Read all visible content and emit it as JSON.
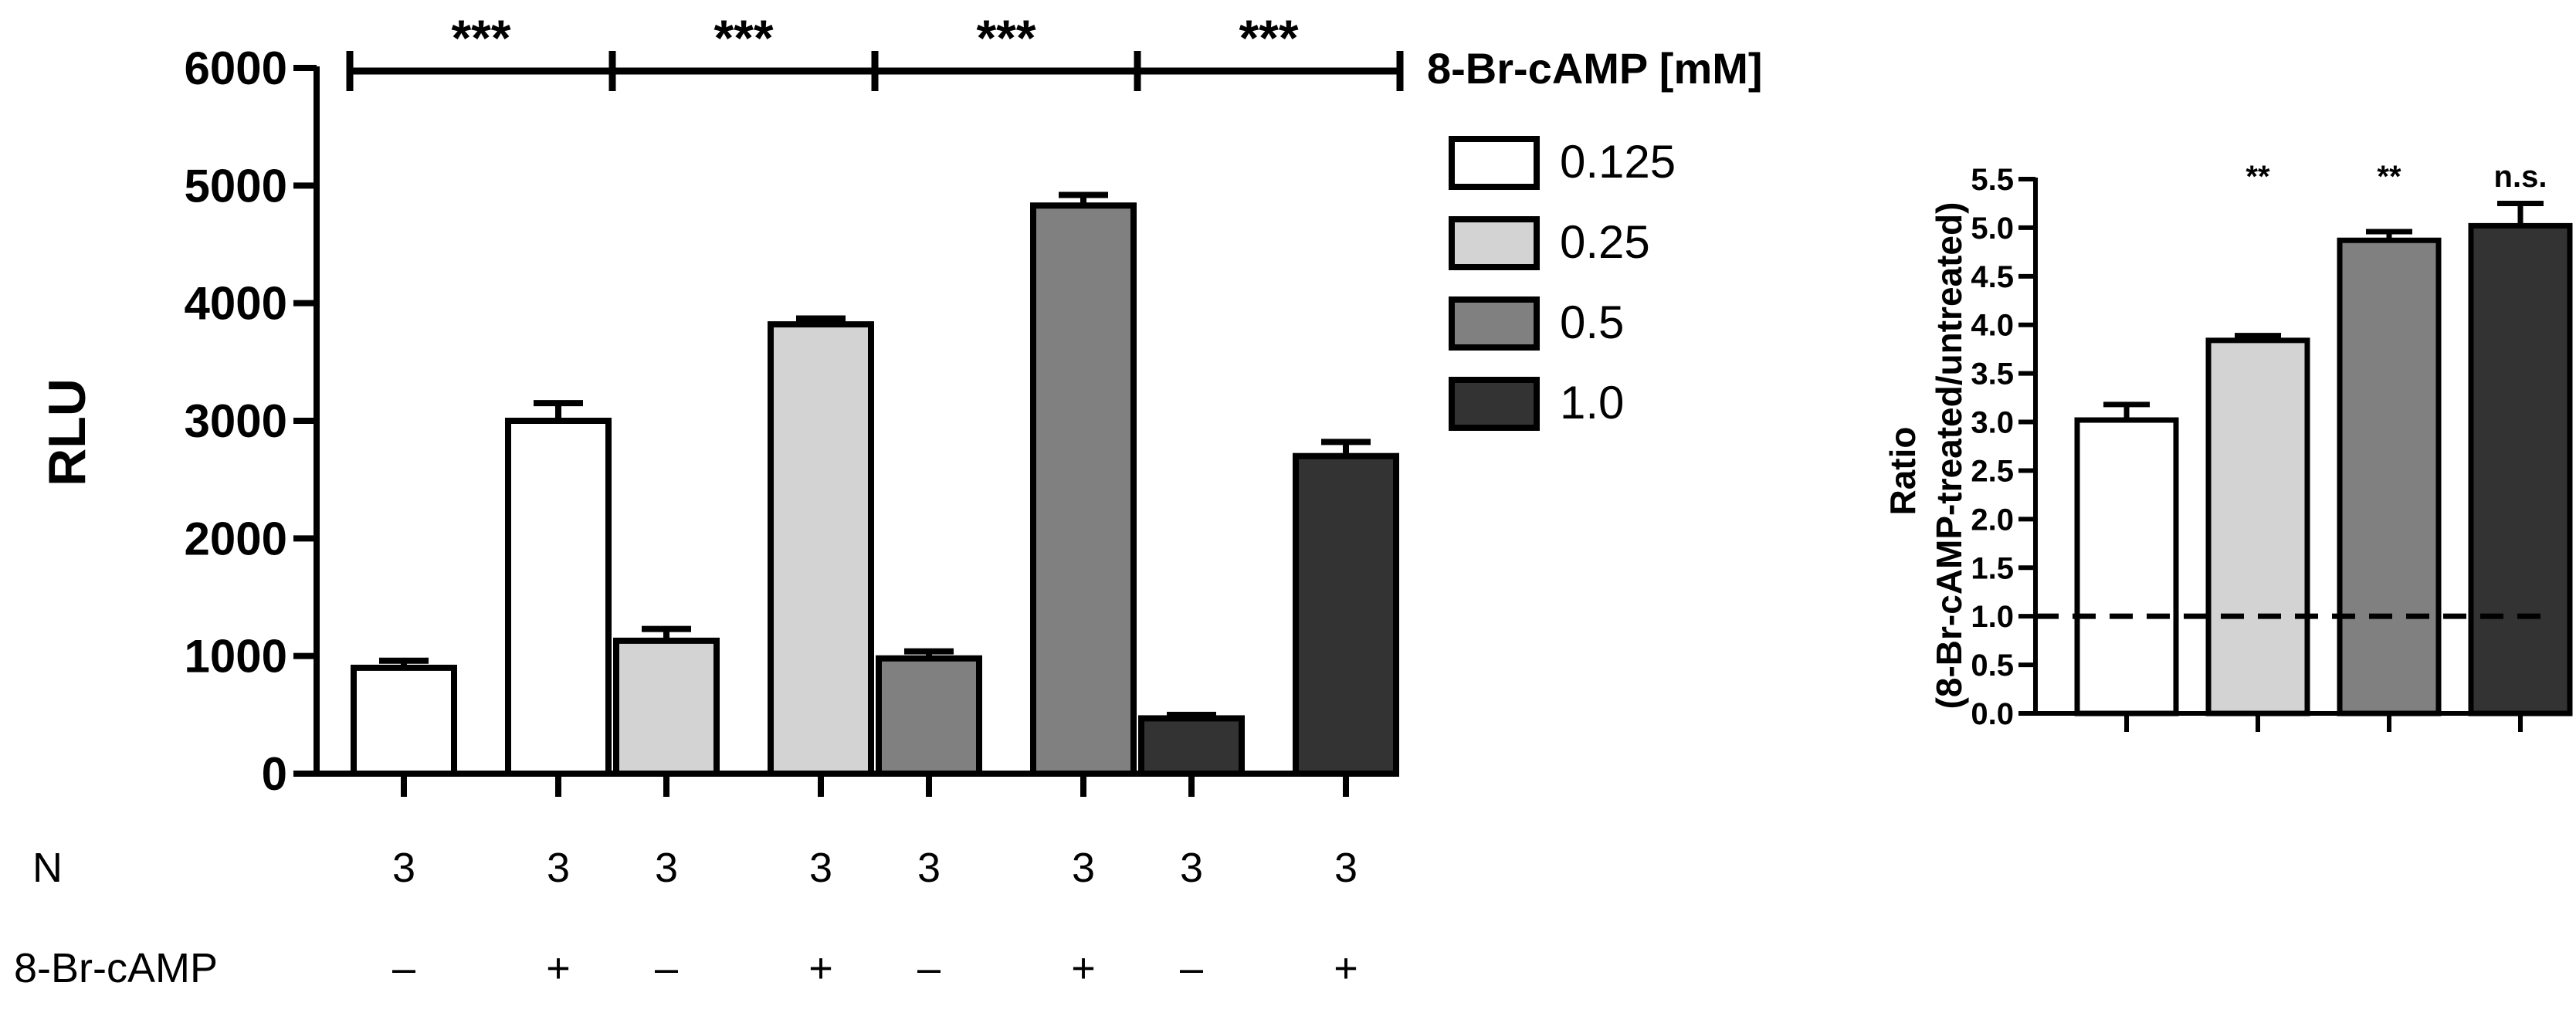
{
  "legend": {
    "title": "8-Br-cAMP [mM]",
    "entries": [
      {
        "label": "0.125",
        "color": "#ffffff"
      },
      {
        "label": "0.25",
        "color": "#d3d3d3"
      },
      {
        "label": "0.5",
        "color": "#808080"
      },
      {
        "label": "1.0",
        "color": "#333333"
      }
    ]
  },
  "rows": {
    "n_label": "N",
    "treat_label": "8-Br-cAMP"
  },
  "chart_data": [
    {
      "type": "bar",
      "ylabel": "RLU",
      "ylim": [
        0,
        6000
      ],
      "yticks": [
        "0",
        "1000",
        "2000",
        "3000",
        "4000",
        "5000",
        "6000"
      ],
      "tick_values": [
        0,
        1000,
        2000,
        3000,
        4000,
        5000,
        6000
      ],
      "groups": [
        "0.125",
        "0.25",
        "0.5",
        "1.0"
      ],
      "bars": [
        {
          "group": 0,
          "treated": false,
          "value": 900,
          "error": 60,
          "n": "3",
          "sign": "–"
        },
        {
          "group": 0,
          "treated": true,
          "value": 3000,
          "error": 150,
          "n": "3",
          "sign": "+"
        },
        {
          "group": 1,
          "treated": false,
          "value": 1130,
          "error": 100,
          "n": "3",
          "sign": "–"
        },
        {
          "group": 1,
          "treated": true,
          "value": 3820,
          "error": 50,
          "n": "3",
          "sign": "+"
        },
        {
          "group": 2,
          "treated": false,
          "value": 980,
          "error": 60,
          "n": "3",
          "sign": "–"
        },
        {
          "group": 2,
          "treated": true,
          "value": 4830,
          "error": 90,
          "n": "3",
          "sign": "+"
        },
        {
          "group": 3,
          "treated": false,
          "value": 470,
          "error": 30,
          "n": "3",
          "sign": "–"
        },
        {
          "group": 3,
          "treated": true,
          "value": 2700,
          "error": 120,
          "n": "3",
          "sign": "+"
        }
      ],
      "significance": [
        "***",
        "***",
        "***",
        "***"
      ]
    },
    {
      "type": "bar",
      "ylabel_line1": "Ratio",
      "ylabel_line2": "(8-Br-cAMP-treated/untreated)",
      "ylim": [
        0,
        5.5
      ],
      "yticks": [
        "0.0",
        "0.5",
        "1.0",
        "1.5",
        "2.0",
        "2.5",
        "3.0",
        "3.5",
        "4.0",
        "4.5",
        "5.0",
        "5.5"
      ],
      "tick_values": [
        0,
        0.5,
        1,
        1.5,
        2,
        2.5,
        3,
        3.5,
        4,
        4.5,
        5,
        5.5
      ],
      "reference_line": 1.0,
      "bars": [
        {
          "value": 3.02,
          "error": 0.16,
          "sig": ""
        },
        {
          "value": 3.84,
          "error": 0.05,
          "sig": "**"
        },
        {
          "value": 4.87,
          "error": 0.09,
          "sig": "**"
        },
        {
          "value": 5.02,
          "error": 0.23,
          "sig": "n.s."
        }
      ]
    }
  ]
}
